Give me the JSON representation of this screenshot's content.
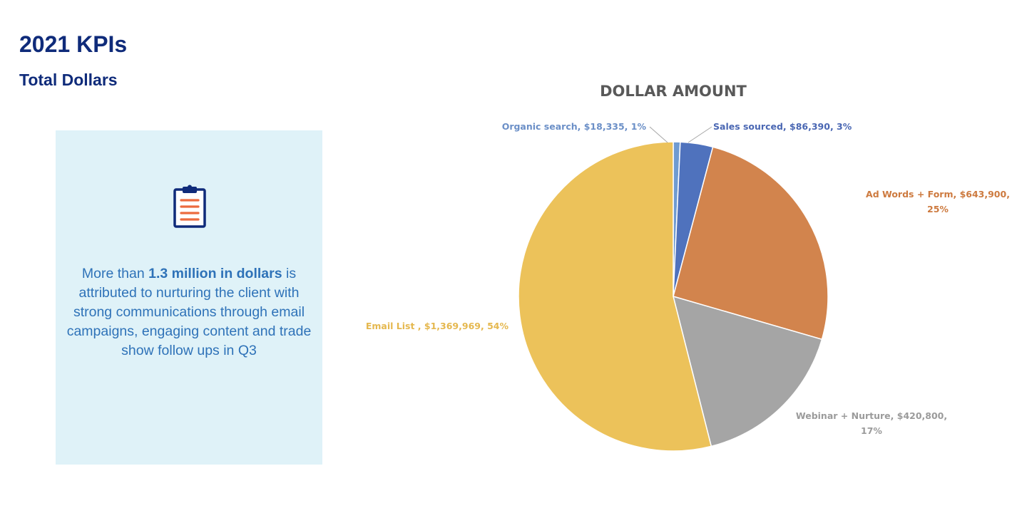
{
  "page": {
    "title": "2021 KPIs",
    "subtitle": "Total Dollars"
  },
  "card": {
    "icon": "clipboard-icon",
    "text_before": "More than ",
    "text_bold": "1.3 million in dollars",
    "text_after": " is attributed to nurturing the client with strong communications through email campaigns, engaging content and trade show follow ups in Q3"
  },
  "chart_data": {
    "type": "pie",
    "title": "DOLLAR AMOUNT",
    "slices": [
      {
        "name": "Organic search",
        "value": 18335,
        "value_label": "$18,335",
        "percent_label": "1%",
        "color": "#6f9bd1"
      },
      {
        "name": "Sales sourced",
        "value": 86390,
        "value_label": "$86,390",
        "percent_label": "3%",
        "color": "#4f72bd"
      },
      {
        "name": "Ad Words + Form",
        "value": 643900,
        "value_label": "$643,900",
        "percent_label": "25%",
        "color": "#d2844d"
      },
      {
        "name": "Webinar + Nurture",
        "value": 420800,
        "value_label": "$420,800",
        "percent_label": "17%",
        "color": "#a5a5a5"
      },
      {
        "name": "Email List ",
        "value": 1369969,
        "value_label": "$1,369,969",
        "percent_label": "54%",
        "color": "#ecc25a"
      }
    ],
    "label_colors": [
      "#6b8fc7",
      "#4a67b3",
      "#cd7a3f",
      "#9b9b9b",
      "#e5b84f"
    ]
  }
}
